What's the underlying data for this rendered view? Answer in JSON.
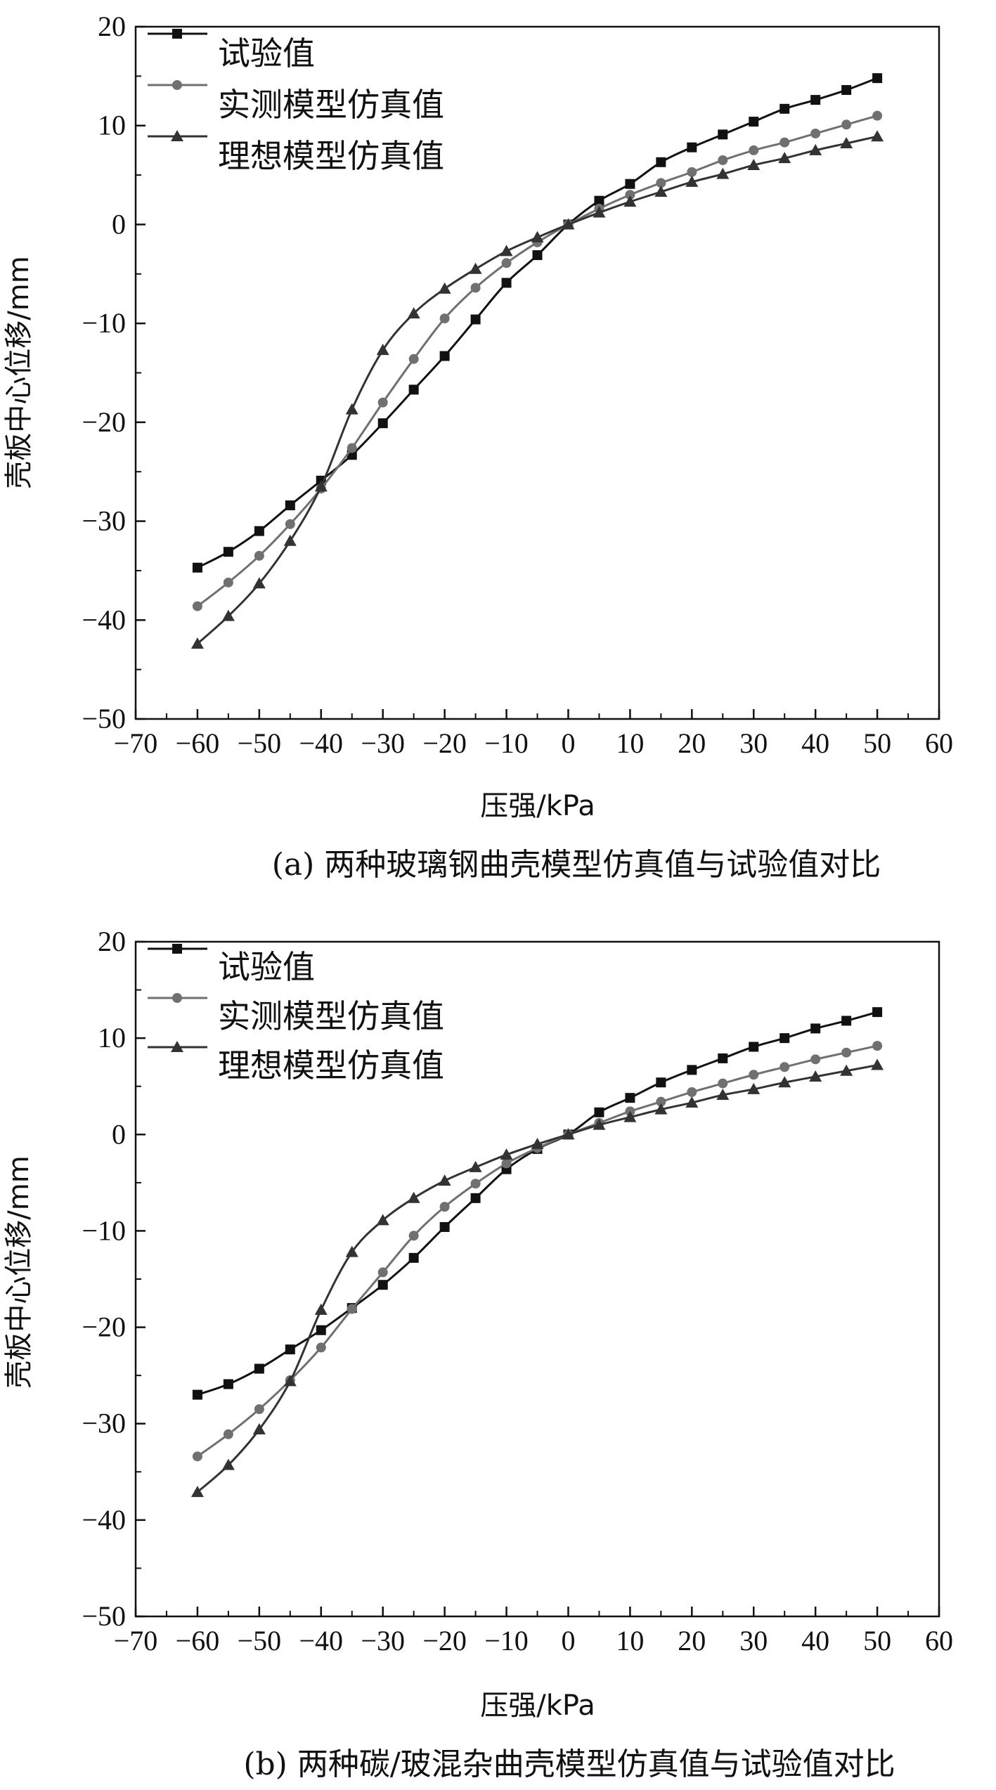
{
  "chart_data": [
    {
      "type": "line",
      "caption": "(a) 两种玻璃钢曲壳模型仿真值与试验值对比",
      "xlabel": "压强/kPa",
      "ylabel": "壳板中心位移/mm",
      "xlim": [
        -70,
        60
      ],
      "ylim": [
        -50,
        20
      ],
      "xticks": [
        -70,
        -60,
        -50,
        -40,
        -30,
        -20,
        -10,
        0,
        10,
        20,
        30,
        40,
        50,
        60
      ],
      "yticks": [
        -50,
        -40,
        -30,
        -20,
        -10,
        0,
        10,
        20
      ],
      "legend_position": "top-left",
      "x": [
        -60,
        -55,
        -50,
        -45,
        -40,
        -35,
        -30,
        -25,
        -20,
        -15,
        -10,
        -5,
        0,
        5,
        10,
        15,
        20,
        25,
        30,
        35,
        40,
        45,
        50
      ],
      "series": [
        {
          "name": "试验值",
          "marker": "square",
          "color": "#111111",
          "values": [
            -34.7,
            -33.1,
            -31.0,
            -28.4,
            -25.9,
            -23.3,
            -20.1,
            -16.7,
            -13.3,
            -9.6,
            -5.9,
            -3.1,
            0.0,
            2.4,
            4.1,
            6.3,
            7.8,
            9.1,
            10.4,
            11.7,
            12.6,
            13.6,
            14.8
          ]
        },
        {
          "name": "实测模型仿真值",
          "marker": "circle",
          "color": "#707070",
          "values": [
            -38.6,
            -36.2,
            -33.5,
            -30.3,
            -26.7,
            -22.6,
            -18.0,
            -13.6,
            -9.5,
            -6.4,
            -3.9,
            -1.8,
            0.0,
            1.6,
            3.0,
            4.2,
            5.3,
            6.5,
            7.5,
            8.3,
            9.2,
            10.1,
            11.0
          ]
        },
        {
          "name": "理想模型仿真值",
          "marker": "triangle",
          "color": "#333333",
          "values": [
            -42.4,
            -39.6,
            -36.3,
            -32.0,
            -26.5,
            -18.7,
            -12.7,
            -9.0,
            -6.5,
            -4.5,
            -2.7,
            -1.3,
            0.0,
            1.2,
            2.3,
            3.3,
            4.3,
            5.1,
            6.0,
            6.7,
            7.5,
            8.2,
            8.9
          ]
        }
      ]
    },
    {
      "type": "line",
      "caption": "(b) 两种碳/玻混杂曲壳模型仿真值与试验值对比",
      "xlabel": "压强/kPa",
      "ylabel": "壳板中心位移/mm",
      "xlim": [
        -70,
        60
      ],
      "ylim": [
        -50,
        20
      ],
      "xticks": [
        -70,
        -60,
        -50,
        -40,
        -30,
        -20,
        -10,
        0,
        10,
        20,
        30,
        40,
        50,
        60
      ],
      "yticks": [
        -50,
        -40,
        -30,
        -20,
        -10,
        0,
        10,
        20
      ],
      "legend_position": "top-left",
      "x": [
        -60,
        -55,
        -50,
        -45,
        -40,
        -35,
        -30,
        -25,
        -20,
        -15,
        -10,
        -5,
        0,
        5,
        10,
        15,
        20,
        25,
        30,
        35,
        40,
        45,
        50
      ],
      "series": [
        {
          "name": "试验值",
          "marker": "square",
          "color": "#111111",
          "values": [
            -27.0,
            -25.9,
            -24.3,
            -22.3,
            -20.3,
            -18.0,
            -15.6,
            -12.8,
            -9.6,
            -6.6,
            -3.6,
            -1.5,
            0.0,
            2.3,
            3.8,
            5.4,
            6.7,
            7.9,
            9.1,
            10.0,
            11.0,
            11.8,
            12.7
          ]
        },
        {
          "name": "实测模型仿真值",
          "marker": "circle",
          "color": "#707070",
          "values": [
            -33.4,
            -31.1,
            -28.5,
            -25.5,
            -22.1,
            -18.1,
            -14.3,
            -10.5,
            -7.5,
            -5.1,
            -3.0,
            -1.4,
            0.0,
            1.2,
            2.4,
            3.4,
            4.4,
            5.3,
            6.2,
            7.0,
            7.8,
            8.5,
            9.2
          ]
        },
        {
          "name": "理想模型仿真值",
          "marker": "triangle",
          "color": "#333333",
          "values": [
            -37.1,
            -34.3,
            -30.6,
            -25.6,
            -18.2,
            -12.2,
            -8.9,
            -6.6,
            -4.8,
            -3.4,
            -2.1,
            -1.0,
            0.0,
            1.0,
            1.8,
            2.6,
            3.3,
            4.1,
            4.7,
            5.4,
            6.0,
            6.6,
            7.2
          ]
        }
      ]
    }
  ]
}
